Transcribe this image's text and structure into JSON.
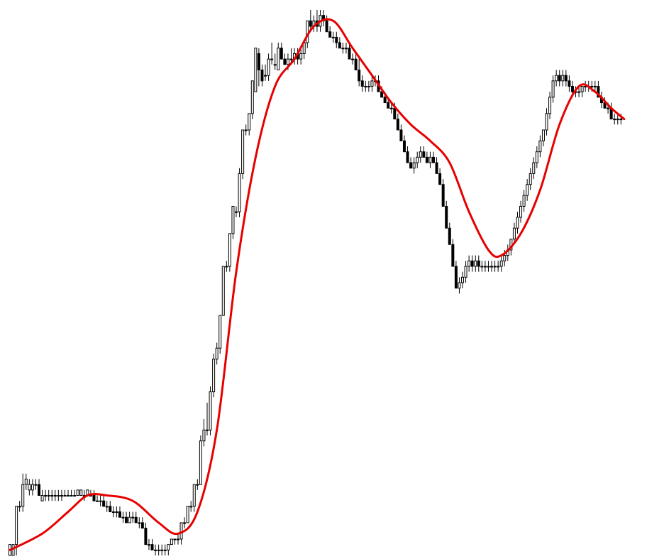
{
  "chart_data": {
    "type": "candlestick",
    "title": "",
    "xlabel": "",
    "ylabel": "",
    "xlim": [
      0,
      201
    ],
    "ylim": [
      0,
      100
    ],
    "grid": false,
    "colors": {
      "background": "#ffffff",
      "candle": "#000000",
      "moving_average": "#e60000"
    },
    "candles": [
      [
        0,
        0,
        2,
        0,
        2
      ],
      [
        1,
        0,
        2,
        0,
        2
      ],
      [
        2,
        2,
        9,
        0,
        9
      ],
      [
        3,
        9,
        10,
        8,
        9
      ],
      [
        4,
        9,
        15,
        8,
        13
      ],
      [
        5,
        13,
        15,
        12,
        14
      ],
      [
        6,
        12,
        14,
        11,
        13
      ],
      [
        7,
        12,
        14,
        11,
        13
      ],
      [
        8,
        13,
        14,
        12,
        13
      ],
      [
        9,
        13,
        14,
        11,
        11
      ],
      [
        10,
        10,
        12,
        10,
        11
      ],
      [
        11,
        11,
        12,
        10,
        11
      ],
      [
        12,
        11,
        12,
        10,
        11
      ],
      [
        13,
        11,
        12,
        10,
        11
      ],
      [
        14,
        11,
        12,
        10,
        11
      ],
      [
        15,
        11,
        12,
        10,
        11
      ],
      [
        16,
        11,
        12,
        10,
        11
      ],
      [
        17,
        11,
        12,
        11,
        11
      ],
      [
        18,
        11,
        12,
        11,
        11
      ],
      [
        19,
        11,
        12,
        11,
        11
      ],
      [
        20,
        11,
        12,
        11,
        11
      ],
      [
        21,
        11,
        12,
        11,
        12
      ],
      [
        22,
        11,
        12,
        11,
        12
      ],
      [
        23,
        11,
        12,
        10,
        11
      ],
      [
        24,
        11,
        12,
        11,
        12
      ],
      [
        25,
        11,
        12,
        11,
        11
      ],
      [
        26,
        11,
        12,
        10,
        10
      ],
      [
        27,
        10,
        11,
        10,
        10
      ],
      [
        28,
        10,
        11,
        9,
        10
      ],
      [
        29,
        10,
        11,
        9,
        9
      ],
      [
        30,
        9,
        10,
        8,
        9
      ],
      [
        31,
        9,
        10,
        8,
        8
      ],
      [
        32,
        8,
        9,
        7,
        8
      ],
      [
        33,
        8,
        9,
        7,
        8
      ],
      [
        34,
        8,
        9,
        7,
        7
      ],
      [
        35,
        7,
        8,
        6,
        7
      ],
      [
        36,
        7,
        8,
        6,
        6
      ],
      [
        37,
        6,
        8,
        6,
        7
      ],
      [
        38,
        7,
        8,
        6,
        7
      ],
      [
        39,
        7,
        8,
        6,
        6
      ],
      [
        40,
        6,
        7,
        5,
        6
      ],
      [
        41,
        6,
        7,
        5,
        5
      ],
      [
        42,
        5,
        6,
        2,
        2
      ],
      [
        43,
        2,
        3,
        1,
        2
      ],
      [
        44,
        2,
        3,
        1,
        1
      ],
      [
        45,
        1,
        2,
        0,
        1
      ],
      [
        46,
        1,
        2,
        0,
        1
      ],
      [
        47,
        1,
        2,
        0,
        1
      ],
      [
        48,
        1,
        2,
        0,
        1
      ],
      [
        49,
        1,
        2,
        0,
        2
      ],
      [
        50,
        2,
        3,
        2,
        3
      ],
      [
        51,
        3,
        3,
        2,
        3
      ],
      [
        52,
        3,
        4,
        2,
        3
      ],
      [
        53,
        3,
        6,
        2,
        6
      ],
      [
        54,
        6,
        7,
        5,
        6
      ],
      [
        55,
        6,
        9,
        6,
        9
      ],
      [
        56,
        9,
        10,
        8,
        9
      ],
      [
        57,
        9,
        13,
        8,
        13
      ],
      [
        58,
        13,
        14,
        12,
        13
      ],
      [
        59,
        13,
        22,
        13,
        21
      ],
      [
        60,
        21,
        25,
        20,
        23
      ],
      [
        61,
        23,
        28,
        22,
        23
      ],
      [
        62,
        23,
        31,
        22,
        30
      ],
      [
        63,
        30,
        37,
        29,
        36
      ],
      [
        64,
        36,
        39,
        35,
        38
      ],
      [
        65,
        38,
        44,
        37,
        44
      ],
      [
        66,
        44,
        53,
        44,
        53
      ],
      [
        67,
        53,
        54,
        52,
        53
      ],
      [
        68,
        53,
        59,
        52,
        59
      ],
      [
        69,
        59,
        64,
        58,
        64
      ],
      [
        70,
        63,
        64,
        62,
        63
      ],
      [
        71,
        63,
        71,
        62,
        70
      ],
      [
        72,
        70,
        78,
        69,
        78
      ],
      [
        73,
        78,
        79,
        77,
        78
      ],
      [
        74,
        78,
        81,
        77,
        81
      ],
      [
        75,
        81,
        87,
        80,
        87
      ],
      [
        76,
        85,
        93,
        85,
        93
      ],
      [
        77,
        92,
        93,
        86,
        89
      ],
      [
        78,
        89,
        90,
        86,
        87
      ],
      [
        79,
        88,
        90,
        87,
        88
      ],
      [
        80,
        88,
        92,
        87,
        91
      ],
      [
        81,
        91,
        94,
        90,
        91
      ],
      [
        82,
        90,
        92,
        89,
        90
      ],
      [
        83,
        89,
        94,
        89,
        93
      ],
      [
        84,
        93,
        94,
        91,
        91
      ],
      [
        85,
        91,
        92,
        90,
        90
      ],
      [
        86,
        90,
        92,
        89,
        91
      ],
      [
        87,
        91,
        93,
        90,
        91
      ],
      [
        88,
        91,
        93,
        90,
        92
      ],
      [
        89,
        92,
        93,
        90,
        91
      ],
      [
        90,
        91,
        93,
        90,
        92
      ],
      [
        91,
        92,
        94,
        91,
        94
      ],
      [
        92,
        94,
        98,
        93,
        98
      ],
      [
        93,
        98,
        100,
        96,
        97
      ],
      [
        94,
        97,
        99,
        96,
        98
      ],
      [
        95,
        98,
        100,
        96,
        97
      ],
      [
        96,
        97,
        100,
        96,
        99
      ],
      [
        97,
        99,
        100,
        97,
        98
      ],
      [
        98,
        98,
        99,
        96,
        96
      ],
      [
        99,
        96,
        97,
        95,
        95
      ],
      [
        100,
        95,
        96,
        94,
        95
      ],
      [
        101,
        95,
        96,
        93,
        94
      ],
      [
        102,
        94,
        95,
        93,
        93
      ],
      [
        103,
        93,
        94,
        92,
        93
      ],
      [
        104,
        93,
        94,
        92,
        93
      ],
      [
        105,
        93,
        94,
        91,
        91
      ],
      [
        106,
        91,
        92,
        90,
        91
      ],
      [
        107,
        91,
        92,
        89,
        89
      ],
      [
        108,
        89,
        91,
        86,
        87
      ],
      [
        109,
        87,
        88,
        85,
        86
      ],
      [
        110,
        86,
        87,
        85,
        86
      ],
      [
        111,
        86,
        87,
        85,
        86
      ],
      [
        112,
        86,
        88,
        85,
        87
      ],
      [
        113,
        87,
        88,
        86,
        87
      ],
      [
        114,
        87,
        88,
        85,
        85
      ],
      [
        115,
        85,
        86,
        84,
        84
      ],
      [
        116,
        84,
        85,
        83,
        83
      ],
      [
        117,
        83,
        84,
        82,
        82
      ],
      [
        118,
        82,
        83,
        81,
        82
      ],
      [
        119,
        82,
        83,
        80,
        80
      ],
      [
        120,
        80,
        81,
        78,
        78
      ],
      [
        121,
        78,
        79,
        76,
        76
      ],
      [
        122,
        76,
        77,
        74,
        74
      ],
      [
        123,
        74,
        75,
        72,
        72
      ],
      [
        124,
        72,
        73,
        71,
        71
      ],
      [
        125,
        71,
        73,
        70,
        72
      ],
      [
        126,
        72,
        74,
        71,
        73
      ],
      [
        127,
        73,
        75,
        72,
        74
      ],
      [
        128,
        74,
        75,
        73,
        73
      ],
      [
        129,
        73,
        74,
        72,
        72
      ],
      [
        130,
        72,
        74,
        71,
        73
      ],
      [
        131,
        73,
        74,
        72,
        72
      ],
      [
        132,
        72,
        73,
        70,
        70
      ],
      [
        133,
        70,
        71,
        68,
        68
      ],
      [
        134,
        68,
        69,
        64,
        64
      ],
      [
        135,
        64,
        65,
        60,
        60
      ],
      [
        136,
        60,
        61,
        57,
        57
      ],
      [
        137,
        57,
        58,
        53,
        53
      ],
      [
        138,
        53,
        54,
        49,
        49
      ],
      [
        139,
        49,
        51,
        48,
        50
      ],
      [
        140,
        50,
        52,
        49,
        51
      ],
      [
        141,
        51,
        54,
        50,
        53
      ],
      [
        142,
        53,
        55,
        52,
        54
      ],
      [
        143,
        54,
        55,
        52,
        53
      ],
      [
        144,
        53,
        55,
        52,
        54
      ],
      [
        145,
        54,
        55,
        52,
        53
      ],
      [
        146,
        53,
        54,
        52,
        53
      ],
      [
        147,
        53,
        54,
        52,
        53
      ],
      [
        148,
        53,
        54,
        52,
        53
      ],
      [
        149,
        53,
        54,
        52,
        53
      ],
      [
        150,
        53,
        54,
        52,
        53
      ],
      [
        151,
        53,
        54,
        52,
        53
      ],
      [
        152,
        53,
        55,
        52,
        54
      ],
      [
        153,
        54,
        56,
        53,
        55
      ],
      [
        154,
        55,
        57,
        54,
        56
      ],
      [
        155,
        56,
        58,
        55,
        58
      ],
      [
        156,
        58,
        61,
        57,
        60
      ],
      [
        157,
        60,
        63,
        59,
        62
      ],
      [
        158,
        62,
        65,
        61,
        64
      ],
      [
        159,
        64,
        67,
        63,
        66
      ],
      [
        160,
        66,
        69,
        65,
        68
      ],
      [
        161,
        68,
        71,
        67,
        70
      ],
      [
        162,
        70,
        73,
        69,
        72
      ],
      [
        163,
        72,
        75,
        71,
        74
      ],
      [
        164,
        74,
        77,
        73,
        76
      ],
      [
        165,
        76,
        78,
        75,
        78
      ],
      [
        166,
        78,
        82,
        77,
        81
      ],
      [
        167,
        81,
        85,
        80,
        84
      ],
      [
        168,
        84,
        88,
        83,
        87
      ],
      [
        169,
        87,
        89,
        86,
        88
      ],
      [
        170,
        88,
        89,
        86,
        87
      ],
      [
        171,
        87,
        89,
        86,
        88
      ],
      [
        172,
        88,
        89,
        86,
        87
      ],
      [
        173,
        87,
        88,
        85,
        86
      ],
      [
        174,
        86,
        87,
        84,
        85
      ],
      [
        175,
        85,
        86,
        84,
        85
      ],
      [
        176,
        85,
        86,
        84,
        85
      ],
      [
        177,
        85,
        86,
        84,
        86
      ],
      [
        178,
        86,
        87,
        85,
        86
      ],
      [
        179,
        86,
        87,
        85,
        86
      ],
      [
        180,
        86,
        87,
        85,
        86
      ],
      [
        181,
        86,
        87,
        85,
        86
      ],
      [
        182,
        86,
        87,
        84,
        84
      ],
      [
        183,
        84,
        85,
        82,
        83
      ],
      [
        184,
        83,
        84,
        82,
        82
      ],
      [
        185,
        82,
        83,
        81,
        82
      ],
      [
        186,
        82,
        83,
        80,
        80
      ],
      [
        187,
        80,
        81,
        79,
        80
      ],
      [
        188,
        80,
        81,
        79,
        80
      ],
      [
        189,
        80,
        81,
        79,
        80
      ]
    ],
    "moving_average": [
      [
        0,
        1
      ],
      [
        10,
        4
      ],
      [
        18,
        8
      ],
      [
        24,
        11
      ],
      [
        30,
        11
      ],
      [
        38,
        10
      ],
      [
        46,
        6
      ],
      [
        52,
        4
      ],
      [
        58,
        8
      ],
      [
        64,
        23
      ],
      [
        70,
        52
      ],
      [
        76,
        73
      ],
      [
        82,
        86
      ],
      [
        88,
        91
      ],
      [
        94,
        97
      ],
      [
        100,
        98
      ],
      [
        106,
        93
      ],
      [
        112,
        88
      ],
      [
        118,
        83
      ],
      [
        124,
        79
      ],
      [
        130,
        76
      ],
      [
        136,
        72
      ],
      [
        142,
        63
      ],
      [
        148,
        56
      ],
      [
        152,
        55
      ],
      [
        158,
        59
      ],
      [
        164,
        67
      ],
      [
        170,
        79
      ],
      [
        176,
        86
      ],
      [
        181,
        85
      ],
      [
        186,
        82
      ],
      [
        190,
        80
      ]
    ]
  }
}
